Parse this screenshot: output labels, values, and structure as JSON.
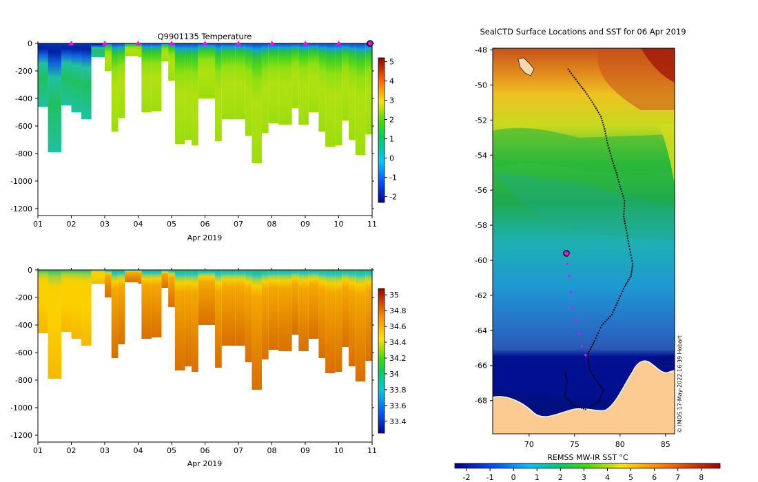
{
  "chart_data": [
    {
      "type": "heatmap",
      "title": "Q9901135  Temperature",
      "variable": "temperature",
      "xlabel": "Apr 2019",
      "x_ticks": [
        "01",
        "02",
        "03",
        "04",
        "05",
        "06",
        "07",
        "08",
        "09",
        "10",
        "11"
      ],
      "xlim": [
        1,
        11
      ],
      "y_ticks": [
        "0",
        "-200",
        "-400",
        "-600",
        "-800",
        "-1000",
        "-1200"
      ],
      "ylim": [
        -1250,
        0
      ],
      "colorbar": {
        "ticks": [
          "5",
          "4",
          "3",
          "2",
          "1",
          "0",
          "-1",
          "-2"
        ],
        "range": [
          -2.3,
          5.2
        ]
      },
      "colors": {
        "cold": "#00108a",
        "mid": "#22cc22",
        "warm": "#a50000",
        "marker": "#ff00ff"
      },
      "surface_markers_day": [
        2.0,
        3.0,
        4.0,
        5.0,
        6.0,
        7.0,
        8.0,
        9.0,
        10.0
      ],
      "latest_profile_day": 11.0,
      "profiles": [
        {
          "day": 1.0,
          "depth": 460
        },
        {
          "day": 1.3,
          "depth": 790
        },
        {
          "day": 1.7,
          "depth": 450
        },
        {
          "day": 2.0,
          "depth": 500
        },
        {
          "day": 2.3,
          "depth": 550
        },
        {
          "day": 2.6,
          "depth": 100
        },
        {
          "day": 3.0,
          "depth": 200
        },
        {
          "day": 3.2,
          "depth": 640
        },
        {
          "day": 3.4,
          "depth": 540
        },
        {
          "day": 3.6,
          "depth": 90
        },
        {
          "day": 4.0,
          "depth": 100
        },
        {
          "day": 4.1,
          "depth": 500
        },
        {
          "day": 4.4,
          "depth": 490
        },
        {
          "day": 4.7,
          "depth": 130
        },
        {
          "day": 4.9,
          "depth": 270
        },
        {
          "day": 5.1,
          "depth": 730
        },
        {
          "day": 5.4,
          "depth": 700
        },
        {
          "day": 5.6,
          "depth": 740
        },
        {
          "day": 5.8,
          "depth": 400
        },
        {
          "day": 6.3,
          "depth": 710
        },
        {
          "day": 6.5,
          "depth": 550
        },
        {
          "day": 6.9,
          "depth": 550
        },
        {
          "day": 7.2,
          "depth": 670
        },
        {
          "day": 7.4,
          "depth": 870
        },
        {
          "day": 7.7,
          "depth": 650
        },
        {
          "day": 7.9,
          "depth": 580
        },
        {
          "day": 8.2,
          "depth": 590
        },
        {
          "day": 8.6,
          "depth": 470
        },
        {
          "day": 8.8,
          "depth": 590
        },
        {
          "day": 9.1,
          "depth": 500
        },
        {
          "day": 9.4,
          "depth": 640
        },
        {
          "day": 9.6,
          "depth": 750
        },
        {
          "day": 9.9,
          "depth": 740
        },
        {
          "day": 10.1,
          "depth": 560
        },
        {
          "day": 10.3,
          "depth": 700
        },
        {
          "day": 10.5,
          "depth": 810
        },
        {
          "day": 10.8,
          "depth": 660
        }
      ]
    },
    {
      "type": "heatmap",
      "title": "",
      "variable": "salinity",
      "xlabel": "Apr 2019",
      "x_ticks": [
        "01",
        "02",
        "03",
        "04",
        "05",
        "06",
        "07",
        "08",
        "09",
        "10",
        "11"
      ],
      "xlim": [
        1,
        11
      ],
      "y_ticks": [
        "0",
        "-200",
        "-400",
        "-600",
        "-800",
        "-1000",
        "-1200"
      ],
      "ylim": [
        -1250,
        0
      ],
      "colorbar": {
        "ticks": [
          "35",
          "34.8",
          "34.6",
          "34.4",
          "34.2",
          "34",
          "33.8",
          "33.6",
          "33.4"
        ],
        "range": [
          33.25,
          35.08
        ]
      }
    },
    {
      "type": "map",
      "title": "SealCTD Surface Locations and SST for 06 Apr 2019",
      "colorbar_label": "REMSS MW-IR SST °C",
      "colorbar_ticks": [
        "-2",
        "-1",
        "0",
        "1",
        "2",
        "3",
        "4",
        "5",
        "6",
        "7",
        "8"
      ],
      "colorbar_range": [
        -2.5,
        8.8
      ],
      "lon_ticks": [
        "70",
        "75",
        "80",
        "85"
      ],
      "lat_ticks": [
        "-48",
        "-50",
        "-52",
        "-54",
        "-56",
        "-58",
        "-60",
        "-62",
        "-64",
        "-66",
        "-68"
      ],
      "lonlim": [
        66,
        86
      ],
      "latlim": [
        -69.9,
        -47.9
      ],
      "credit": "© IMOS 17-May-2022 16:39 Hobart",
      "current_position": {
        "lon": 74.1,
        "lat": -59.6
      },
      "track": [
        [
          74.3,
          -49.1
        ],
        [
          75.3,
          -49.8
        ],
        [
          76.2,
          -50.4
        ],
        [
          77.1,
          -51.1
        ],
        [
          77.9,
          -51.8
        ],
        [
          78.3,
          -52.5
        ],
        [
          78.6,
          -53.3
        ],
        [
          79.1,
          -54.2
        ],
        [
          79.6,
          -55.0
        ],
        [
          80.0,
          -55.8
        ],
        [
          80.5,
          -56.6
        ],
        [
          80.4,
          -57.5
        ],
        [
          80.7,
          -58.3
        ],
        [
          81.0,
          -59.2
        ],
        [
          81.4,
          -60.2
        ],
        [
          81.2,
          -60.9
        ],
        [
          80.5,
          -61.5
        ],
        [
          79.8,
          -62.3
        ],
        [
          79.1,
          -63.1
        ],
        [
          78.0,
          -63.7
        ],
        [
          77.2,
          -64.6
        ],
        [
          76.5,
          -65.3
        ],
        [
          76.6,
          -66.2
        ],
        [
          77.3,
          -66.8
        ],
        [
          78.2,
          -67.4
        ],
        [
          77.6,
          -68.1
        ],
        [
          76.2,
          -68.5
        ],
        [
          74.9,
          -68.3
        ],
        [
          73.9,
          -67.7
        ],
        [
          74.2,
          -66.9
        ],
        [
          73.9,
          -66.2
        ]
      ],
      "recent_track": [
        [
          74.2,
          -60.2
        ],
        [
          74.4,
          -60.9
        ],
        [
          74.6,
          -61.8
        ],
        [
          74.8,
          -62.7
        ],
        [
          75.1,
          -63.4
        ],
        [
          75.5,
          -64.2
        ],
        [
          75.8,
          -64.9
        ],
        [
          76.2,
          -65.4
        ]
      ],
      "regions": [
        {
          "name": "warm",
          "lat_min": -52,
          "color": "#d26a10"
        },
        {
          "name": "mid",
          "lat_min": -56,
          "color": "#2fb52a"
        },
        {
          "name": "cool",
          "lat_min": -62,
          "color": "#19a5c9"
        },
        {
          "name": "cold",
          "lat_min": -65.6,
          "color": "#2855b5"
        },
        {
          "name": "ice",
          "lat_min": -69.9,
          "color": "#001095"
        }
      ],
      "land_color": "#fccb92"
    }
  ]
}
